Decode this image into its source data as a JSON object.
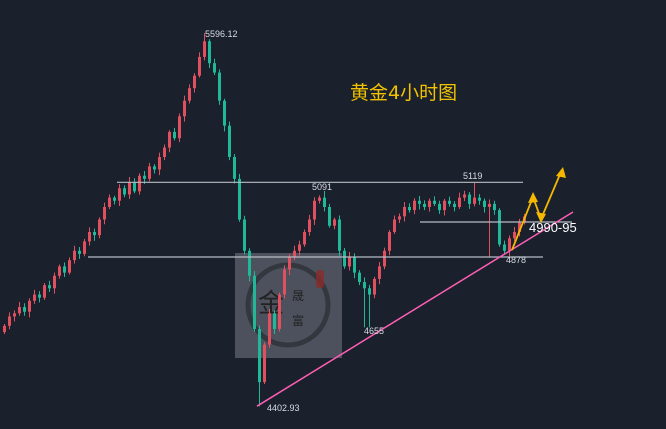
{
  "chart_data": {
    "type": "candlestick",
    "title": "黄金4小时图",
    "ylim": [
      4330,
      5702
    ],
    "colors": {
      "up": "#e0505f",
      "down": "#1fb99a",
      "background": "#1a202c",
      "level_line": "#b8bcc4",
      "trendline": "#ff5fb4",
      "arrow": "#f5b800",
      "title": "#f2c200"
    },
    "grid": false,
    "closes": [
      4660,
      4690,
      4700,
      4720,
      4705,
      4740,
      4760,
      4750,
      4790,
      4780,
      4820,
      4850,
      4830,
      4870,
      4900,
      4890,
      4930,
      4960,
      4950,
      5000,
      5040,
      5070,
      5060,
      5100,
      5080,
      5120,
      5090,
      5140,
      5130,
      5170,
      5160,
      5200,
      5230,
      5280,
      5260,
      5330,
      5380,
      5420,
      5460,
      5520,
      5570,
      5500,
      5470,
      5380,
      5300,
      5200,
      5130,
      5000,
      4900,
      4820,
      4650,
      4480,
      4600,
      4700,
      4650,
      4760,
      4840,
      4880,
      4900,
      4920,
      4960,
      5000,
      5060,
      5070,
      5040,
      4980,
      5000,
      4900,
      4850,
      4880,
      4830,
      4800,
      4780,
      4760,
      4810,
      4850,
      4900,
      4960,
      5000,
      5010,
      5040,
      5030,
      5060,
      5050,
      5040,
      5060,
      5050,
      5030,
      5060,
      5050,
      5040,
      5070,
      5080,
      5050,
      5070,
      5060,
      5040,
      5050,
      5030,
      4920,
      4900,
      4940,
      4960,
      4990,
      5010
    ],
    "first_open": 4640,
    "levels": [
      {
        "price": 5119,
        "label": "5119"
      },
      {
        "price": 4880,
        "label": ""
      },
      {
        "price": 4992,
        "label": "4990-95"
      }
    ],
    "annotations": [
      {
        "price": 5596.12,
        "label": "5596.12"
      },
      {
        "price": 5091,
        "label": "5091"
      },
      {
        "price": 5119,
        "label": "5119"
      },
      {
        "price": 4878,
        "label": "4878"
      },
      {
        "price": 4655,
        "label": "4655"
      },
      {
        "price": 4402.93,
        "label": "4402.93"
      },
      {
        "price": 4992,
        "label": "4990-95"
      }
    ]
  },
  "watermark": {
    "text": "金晟富"
  }
}
